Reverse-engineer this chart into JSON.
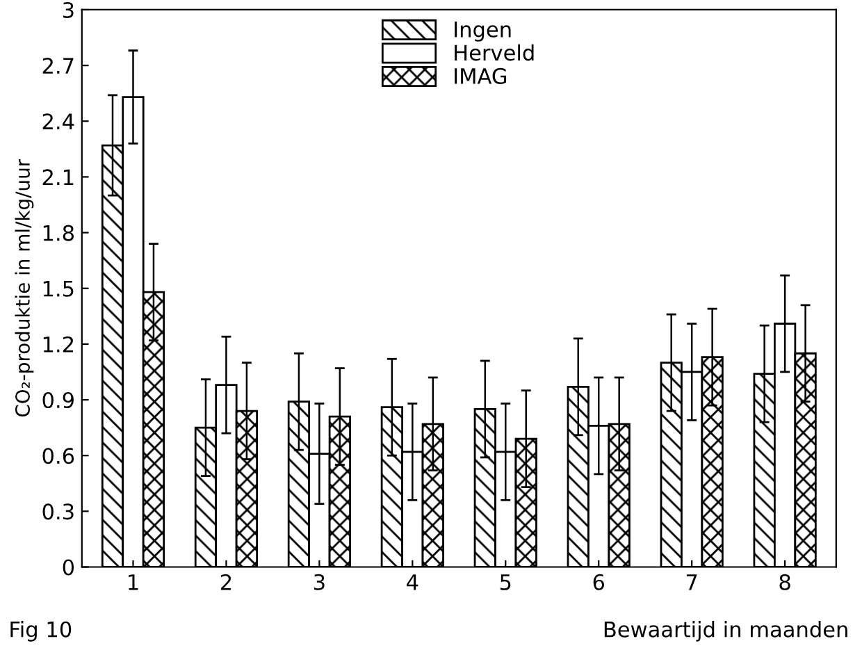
{
  "chart_data": {
    "type": "bar",
    "ylabel": "CO₂-produktie in ml/kg/uur",
    "xlabel": "Bewaartijd in maanden",
    "annotations": [
      "Fig 10"
    ],
    "categories": [
      "1",
      "2",
      "3",
      "4",
      "5",
      "6",
      "7",
      "8"
    ],
    "series": [
      {
        "name": "Ingen",
        "color": "#000000",
        "values": [
          2.27,
          0.75,
          0.89,
          0.86,
          0.85,
          0.97,
          1.1,
          1.04
        ],
        "errors": [
          0.27,
          0.26,
          0.26,
          0.26,
          0.26,
          0.26,
          0.26,
          0.26
        ]
      },
      {
        "name": "Herveld",
        "color": "#ffffff",
        "values": [
          2.53,
          0.98,
          0.61,
          0.62,
          0.62,
          0.76,
          1.05,
          1.31
        ],
        "errors": [
          0.25,
          0.26,
          0.27,
          0.26,
          0.26,
          0.26,
          0.26,
          0.26
        ]
      },
      {
        "name": "IMAG",
        "color": "#000000",
        "values": [
          1.48,
          0.84,
          0.81,
          0.77,
          0.69,
          0.77,
          1.13,
          1.15
        ],
        "errors": [
          0.26,
          0.26,
          0.26,
          0.25,
          0.26,
          0.25,
          0.26,
          0.26
        ]
      }
    ],
    "ylim": [
      0,
      3
    ],
    "yticks": [
      0,
      0.3,
      0.6,
      0.9,
      1.2,
      1.5,
      1.8,
      2.1,
      2.4,
      2.7,
      3
    ],
    "legend": "top",
    "grid": false
  }
}
